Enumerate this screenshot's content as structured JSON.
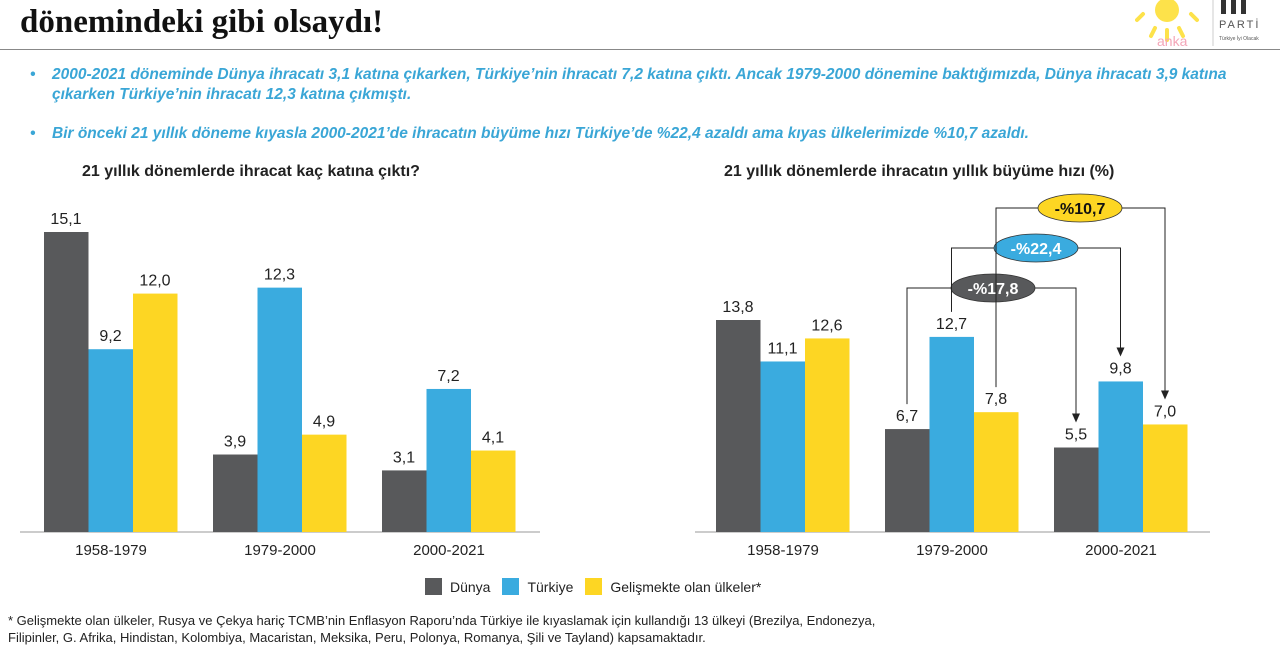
{
  "title": "dönemindeki gibi olsaydı!",
  "logo": {
    "text": "PARTİ",
    "watermark": "anka",
    "tagline": "Türkiye İyi Olacak"
  },
  "bullets": [
    "2000-2021 döneminde Dünya ihracatı 3,1 katına çıkarken, Türkiye’nin ihracatı 7,2 katına çıktı. Ancak 1979-2000 dönemine baktığımızda, Dünya ihracatı 3,9 katına çıkarken Türkiye’nin ihracatı 12,3 katına çıkmıştı.",
    "Bir önceki 21 yıllık döneme kıyasla 2000-2021’de ihracatın büyüme hızı Türkiye’de %22,4 azaldı ama kıyas ülkelerimizde %10,7 azaldı."
  ],
  "bullet_symbol": "•",
  "colors": {
    "Dünya": "#58595b",
    "Türkiye": "#3aabdf",
    "Gelişmekte": "#fdd623"
  },
  "legend": [
    "Dünya",
    "Türkiye",
    "Gelişmekte olan ülkeler*"
  ],
  "footnote": "* Gelişmekte olan ülkeler, Rusya ve Çekya hariç TCMB’nin Enflasyon Raporu’nda Türkiye ile kıyaslamak için kullandığı 13 ülkeyi (Brezilya, Endonezya, Filipinler, G. Afrika, Hindistan, Kolombiya, Macaristan, Meksika, Peru, Polonya, Romanya, Şili ve Tayland) kapsamaktadır.",
  "chart_data": [
    {
      "type": "bar",
      "title": "21 yıllık dönemlerde ihracat kaç katına çıktı?",
      "categories": [
        "1958-1979",
        "1979-2000",
        "2000-2021"
      ],
      "series": [
        {
          "name": "Dünya",
          "values": [
            15.1,
            3.9,
            3.1
          ]
        },
        {
          "name": "Türkiye",
          "values": [
            9.2,
            12.3,
            7.2
          ]
        },
        {
          "name": "Gelişmekte olan ülkeler*",
          "values": [
            12.0,
            4.9,
            4.1
          ]
        }
      ],
      "labels": [
        [
          "15,1",
          "3,9",
          "3,1"
        ],
        [
          "9,2",
          "12,3",
          "7,2"
        ],
        [
          "12,0",
          "4,9",
          "4,1"
        ]
      ],
      "ylim": [
        0,
        15.1
      ],
      "grid": false
    },
    {
      "type": "bar",
      "title": "21 yıllık dönemlerde ihracatın yıllık büyüme hızı (%)",
      "categories": [
        "1958-1979",
        "1979-2000",
        "2000-2021"
      ],
      "series": [
        {
          "name": "Dünya",
          "values": [
            13.8,
            6.7,
            5.5
          ]
        },
        {
          "name": "Türkiye",
          "values": [
            11.1,
            12.7,
            9.8
          ]
        },
        {
          "name": "Gelişmekte olan ülkeler*",
          "values": [
            12.6,
            7.8,
            7.0
          ]
        }
      ],
      "labels": [
        [
          "13,8",
          "6,7",
          "5,5"
        ],
        [
          "11,1",
          "12,7",
          "9,8"
        ],
        [
          "12,6",
          "7,8",
          "7,0"
        ]
      ],
      "ylim": [
        0,
        13.8
      ],
      "grid": false,
      "annotations": [
        {
          "series": "Dünya",
          "text": "-%17,8"
        },
        {
          "series": "Türkiye",
          "text": "-%22,4"
        },
        {
          "series": "Gelişmekte olan ülkeler*",
          "text": "-%10,7"
        }
      ]
    }
  ]
}
